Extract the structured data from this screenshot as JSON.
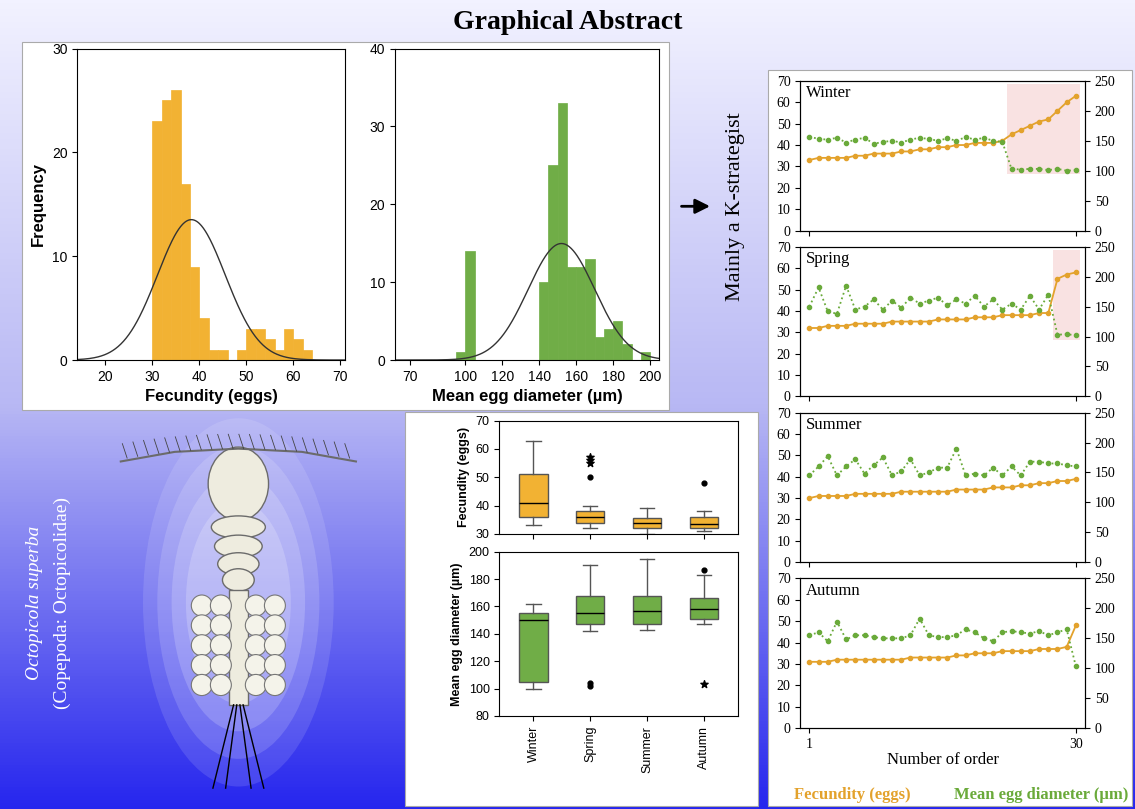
{
  "title": "Graphical Abstract",
  "annotation": "Mainly a K-strategist",
  "species": {
    "name": "Octopicola superba",
    "taxon": "(Copepoda: Octopicolidae)"
  },
  "chart_data": [
    {
      "type": "histogram",
      "x_label": "Fecundity (eggs)",
      "y_label": "Frequency",
      "bins": [
        30,
        32,
        34,
        36,
        38,
        40,
        42,
        44,
        46,
        48,
        50,
        52,
        54,
        56,
        58,
        60,
        62,
        64
      ],
      "counts": [
        23,
        25,
        26,
        17,
        9,
        4,
        1,
        1,
        0,
        1,
        3,
        3,
        2,
        1,
        3,
        2,
        1
      ],
      "normal_curve": {
        "mean": 38.3,
        "sd": 7.2
      },
      "color": "#f2b233",
      "xlim": [
        14,
        71
      ],
      "xticks": [
        20,
        30,
        40,
        50,
        60,
        70
      ],
      "ylim": [
        0,
        30
      ],
      "yticks": [
        0,
        10,
        20,
        30
      ]
    },
    {
      "type": "histogram",
      "x_label": "Mean egg diameter (µm)",
      "bins": [
        95,
        100,
        105,
        110,
        115,
        120,
        125,
        130,
        135,
        140,
        145,
        150,
        155,
        160,
        165,
        170,
        175,
        180,
        185,
        190,
        195,
        200
      ],
      "counts": [
        1,
        14,
        0,
        0,
        0,
        0,
        0,
        0,
        0,
        10,
        25,
        33,
        12,
        12,
        13,
        3,
        4,
        5,
        2,
        0,
        1
      ],
      "normal_curve": {
        "mean": 152,
        "sd": 18
      },
      "color": "#70ad47",
      "xlim": [
        62,
        205
      ],
      "xticks": [
        70,
        100,
        120,
        140,
        160,
        180,
        200
      ],
      "ylim": [
        0,
        40
      ],
      "yticks": [
        0,
        10,
        20,
        30,
        40
      ]
    },
    {
      "type": "line",
      "x_label": "Number of order",
      "x": [
        1,
        2,
        3,
        4,
        5,
        6,
        7,
        8,
        9,
        10,
        11,
        12,
        13,
        14,
        15,
        16,
        17,
        18,
        19,
        20,
        21,
        22,
        23,
        24,
        25,
        26,
        27,
        28,
        29,
        30
      ],
      "xlim": [
        0,
        31
      ],
      "xticks": [
        1,
        30
      ],
      "ylim": [
        0,
        70
      ],
      "yticks": [
        0,
        10,
        20,
        30,
        40,
        50,
        60,
        70
      ],
      "y2lim": [
        0,
        250
      ],
      "y2ticks": [
        0,
        50,
        100,
        150,
        200,
        250
      ],
      "series": [
        {
          "name": "Fecundity (eggs)",
          "color": "#e3a22c",
          "marker": "o",
          "line_style": "solid"
        },
        {
          "name": "Mean egg diameter (µm)",
          "color": "#6aaa3a",
          "marker": "o",
          "line_style": "dotted",
          "axis": "y2"
        }
      ],
      "panels": [
        {
          "title": "Winter",
          "highlight": [
            23,
            30
          ],
          "values": [
            [
              33,
              34,
              34,
              34,
              34,
              35,
              35,
              36,
              36,
              36,
              37,
              37,
              38,
              38,
              39,
              39,
              40,
              40,
              41,
              41,
              41,
              42,
              45,
              47,
              49,
              51,
              52,
              56,
              60,
              63
            ],
            [
              157,
              153,
              152,
              155,
              147,
              152,
              155,
              145,
              148,
              150,
              147,
              152,
              155,
              153,
              150,
              154,
              150,
              156,
              152,
              155,
              150,
              148,
              103,
              102,
              103,
              103,
              101,
              103,
              100,
              101
            ]
          ]
        },
        {
          "title": "Spring",
          "highlight": [
            28,
            30
          ],
          "values": [
            [
              32,
              32,
              33,
              33,
              33,
              34,
              34,
              34,
              34,
              35,
              35,
              35,
              35,
              35,
              36,
              36,
              36,
              36,
              37,
              37,
              37,
              38,
              38,
              38,
              38,
              39,
              39,
              55,
              57,
              58
            ],
            [
              150,
              182,
              142,
              138,
              185,
              145,
              150,
              162,
              145,
              160,
              148,
              165,
              155,
              160,
              165,
              152,
              162,
              155,
              168,
              150,
              162,
              145,
              155,
              145,
              168,
              145,
              170,
              103,
              104,
              102
            ]
          ]
        },
        {
          "title": "Summer",
          "values": [
            [
              30,
              31,
              31,
              31,
              31,
              32,
              32,
              32,
              32,
              32,
              33,
              33,
              33,
              33,
              33,
              33,
              34,
              34,
              34,
              34,
              35,
              35,
              35,
              36,
              36,
              37,
              37,
              38,
              38,
              39
            ],
            [
              145,
              160,
              177,
              145,
              160,
              172,
              148,
              162,
              175,
              145,
              152,
              172,
              145,
              150,
              158,
              158,
              190,
              145,
              148,
              145,
              158,
              145,
              160,
              145,
              168,
              168,
              165,
              165,
              162,
              160
            ]
          ]
        },
        {
          "title": "Autumn",
          "values": [
            [
              31,
              31,
              31,
              32,
              32,
              32,
              32,
              32,
              32,
              32,
              32,
              33,
              33,
              33,
              33,
              33,
              34,
              34,
              35,
              35,
              35,
              36,
              36,
              36,
              36,
              37,
              37,
              37,
              38,
              48
            ],
            [
              155,
              160,
              145,
              178,
              148,
              155,
              155,
              152,
              150,
              150,
              150,
              155,
              183,
              155,
              152,
              152,
              155,
              165,
              160,
              150,
              145,
              160,
              162,
              160,
              158,
              162,
              155,
              160,
              165,
              103
            ]
          ]
        }
      ]
    },
    {
      "type": "box",
      "y_label": "Fecundity (eggs)",
      "color": "#f2b233",
      "tick_labels": "y",
      "ylim": [
        30,
        70
      ],
      "yticks": [
        30,
        40,
        50,
        60,
        70
      ],
      "boxes": [
        {
          "whislo": 33,
          "q1": 36,
          "med": 41,
          "q3": 51,
          "whishi": 63,
          "outliers": [],
          "extremes": []
        },
        {
          "whislo": 32,
          "q1": 34,
          "med": 36,
          "q3": 38,
          "whishi": 40,
          "outliers": [
            50
          ],
          "extremes": [
            55,
            56,
            57
          ]
        },
        {
          "whislo": 30,
          "q1": 32,
          "med": 34,
          "q3": 35.5,
          "whishi": 39,
          "outliers": [],
          "extremes": []
        },
        {
          "whislo": 31,
          "q1": 32,
          "med": 33.5,
          "q3": 36,
          "whishi": 38,
          "outliers": [
            48
          ],
          "extremes": []
        }
      ]
    },
    {
      "type": "box",
      "y_label": "Mean egg diameter (µm)",
      "color": "#70ad47",
      "categories": [
        "Winter",
        "Spring",
        "Summer",
        "Autumn"
      ],
      "ylim": [
        80,
        200
      ],
      "yticks": [
        80,
        100,
        120,
        140,
        160,
        180,
        200
      ],
      "boxes": [
        {
          "whislo": 100,
          "q1": 105,
          "med": 150,
          "q3": 155,
          "whishi": 162,
          "outliers": [],
          "extremes": []
        },
        {
          "whislo": 142,
          "q1": 147,
          "med": 155,
          "q3": 168,
          "whishi": 190,
          "outliers": [
            102,
            104
          ],
          "extremes": []
        },
        {
          "whislo": 143,
          "q1": 147,
          "med": 157,
          "q3": 168,
          "whishi": 195,
          "outliers": [],
          "extremes": []
        },
        {
          "whislo": 147,
          "q1": 151,
          "med": 158,
          "q3": 166,
          "whishi": 183,
          "outliers": [
            187
          ],
          "extremes": [
            103
          ]
        }
      ]
    }
  ]
}
